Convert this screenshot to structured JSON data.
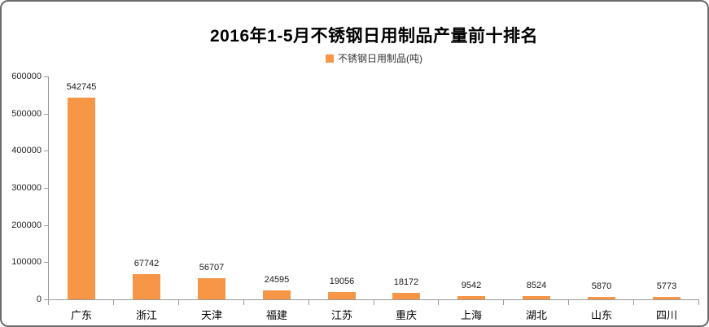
{
  "chart_data": {
    "type": "bar",
    "title": "2016年1-5月不锈钢日用制品产量前十排名",
    "legend": [
      "不锈钢日用制品(吨)"
    ],
    "legend_position": "top",
    "categories": [
      "广东",
      "浙江",
      "天津",
      "福建",
      "江苏",
      "重庆",
      "上海",
      "湖北",
      "山东",
      "四川"
    ],
    "values": [
      542745,
      67742,
      56707,
      24595,
      19056,
      18172,
      9542,
      8524,
      5870,
      5773
    ],
    "xlabel": "",
    "ylabel": "",
    "ylim": [
      0,
      600000
    ],
    "y_ticks": [
      0,
      100000,
      200000,
      300000,
      400000,
      500000,
      600000
    ],
    "grid": false,
    "data_labels": true,
    "colors": {
      "bar": "#F79646",
      "axis": "#9a9a9a",
      "title_text": "#000000",
      "label_text": "#1a1a1a"
    }
  }
}
